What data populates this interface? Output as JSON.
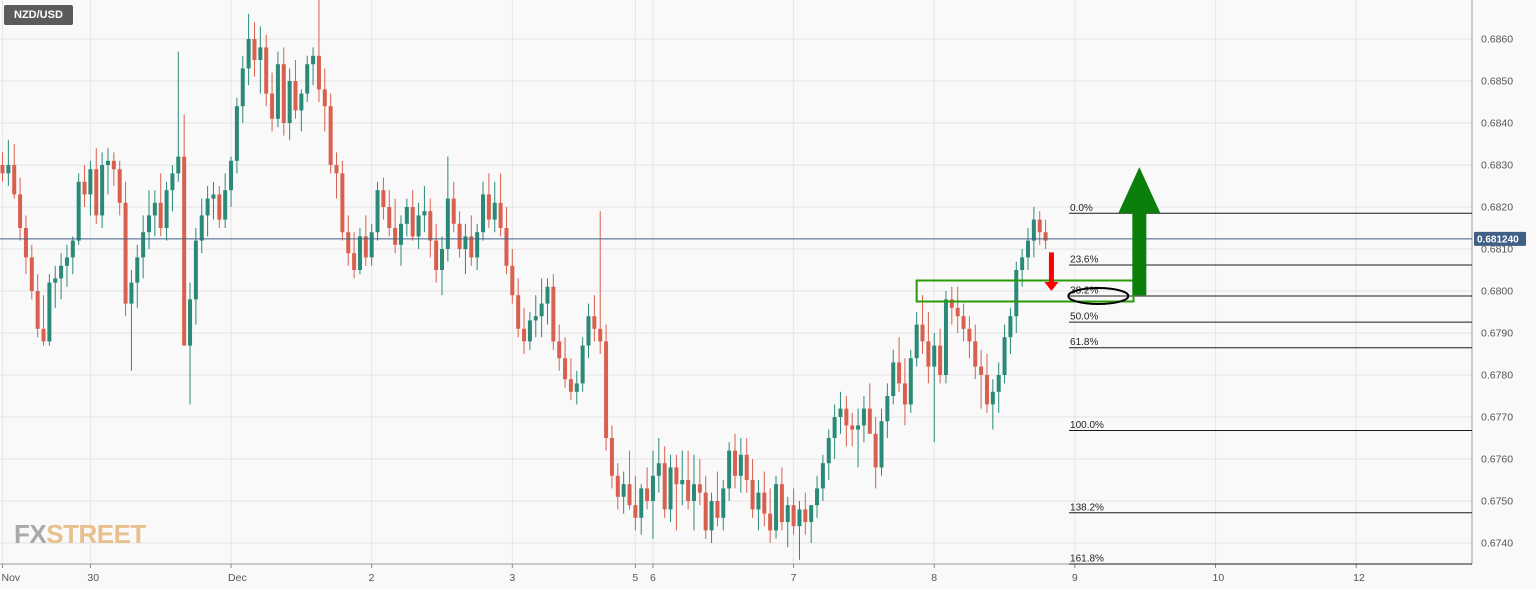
{
  "header": {
    "symbol": "NZD/USD"
  },
  "watermark": {
    "part1": "FX",
    "part2": "STREET"
  },
  "colors": {
    "up": "#2a8a77",
    "down": "#d9604e",
    "price_badge": "#3f5f86",
    "fib_line": "#1a1a1a",
    "zone": "#2a9a0a",
    "arrow_up": "#0b7f0b",
    "arrow_down": "#ff0000"
  },
  "chart_data": {
    "type": "candlestick",
    "title": "NZD/USD",
    "ylim": [
      0.6735,
      0.687
    ],
    "y_ticks": [
      "0.6740",
      "0.6750",
      "0.6760",
      "0.6770",
      "0.6780",
      "0.6790",
      "0.6800",
      "0.6810",
      "0.6820",
      "0.6830",
      "0.6840",
      "0.6850",
      "0.6860"
    ],
    "x_ticks": [
      {
        "label": "Nov",
        "bar": 0
      },
      {
        "label": "30",
        "bar": 15
      },
      {
        "label": "Dec",
        "bar": 39
      },
      {
        "label": "2",
        "bar": 63
      },
      {
        "label": "3",
        "bar": 87
      },
      {
        "label": "5",
        "bar": 108
      },
      {
        "label": "6",
        "bar": 111
      },
      {
        "label": "7",
        "bar": 135
      },
      {
        "label": "8",
        "bar": 159
      },
      {
        "label": "9",
        "bar": 183
      },
      {
        "label": "10",
        "bar": 207
      },
      {
        "label": "12",
        "bar": 231
      }
    ],
    "grid": true,
    "current_price": "0.681240",
    "current_value": 0.68124,
    "fibonacci": [
      {
        "label": "0.0%",
        "value": 0.68185
      },
      {
        "label": "23.6%",
        "value": 0.68062
      },
      {
        "label": "38.2%",
        "value": 0.67988
      },
      {
        "label": "50.0%",
        "value": 0.67926
      },
      {
        "label": "61.8%",
        "value": 0.67865
      },
      {
        "label": "100.0%",
        "value": 0.67668
      },
      {
        "label": "138.2%",
        "value": 0.67472
      },
      {
        "label": "161.8%",
        "value": 0.6735
      }
    ],
    "annotations": {
      "zone": {
        "from_bar": 156,
        "to_bar": 193,
        "low": 0.67975,
        "high": 0.68025
      },
      "ellipse_level": 0.67988,
      "arrow_up": {
        "bar": 194,
        "from": 0.6799,
        "to": 0.68295
      },
      "arrow_down": {
        "bar": 179,
        "from": 0.68092,
        "to": 0.68
      }
    },
    "candles": [
      [
        0.683,
        0.6833,
        0.6826,
        0.6828
      ],
      [
        0.6828,
        0.6836,
        0.6825,
        0.683
      ],
      [
        0.683,
        0.6835,
        0.6822,
        0.6823
      ],
      [
        0.6823,
        0.6827,
        0.6812,
        0.6815
      ],
      [
        0.6815,
        0.6818,
        0.6804,
        0.6808
      ],
      [
        0.6808,
        0.6811,
        0.6798,
        0.68
      ],
      [
        0.68,
        0.6804,
        0.6789,
        0.6791
      ],
      [
        0.6791,
        0.6799,
        0.6787,
        0.6788
      ],
      [
        0.6788,
        0.6804,
        0.6787,
        0.6802
      ],
      [
        0.6802,
        0.6806,
        0.6796,
        0.6803
      ],
      [
        0.6803,
        0.6809,
        0.6798,
        0.6806
      ],
      [
        0.6806,
        0.6811,
        0.6801,
        0.6808
      ],
      [
        0.6808,
        0.6813,
        0.6804,
        0.6812
      ],
      [
        0.6812,
        0.6828,
        0.6811,
        0.6826
      ],
      [
        0.6826,
        0.683,
        0.682,
        0.6823
      ],
      [
        0.6823,
        0.6831,
        0.6818,
        0.6829
      ],
      [
        0.6829,
        0.6834,
        0.6816,
        0.6818
      ],
      [
        0.6818,
        0.6833,
        0.6815,
        0.683
      ],
      [
        0.683,
        0.6834,
        0.6823,
        0.6831
      ],
      [
        0.6831,
        0.6833,
        0.6825,
        0.6829
      ],
      [
        0.6829,
        0.6831,
        0.6818,
        0.6821
      ],
      [
        0.6821,
        0.6826,
        0.6794,
        0.6797
      ],
      [
        0.6797,
        0.6805,
        0.6781,
        0.6802
      ],
      [
        0.6802,
        0.6811,
        0.6796,
        0.6808
      ],
      [
        0.6808,
        0.6818,
        0.6803,
        0.6814
      ],
      [
        0.6814,
        0.6824,
        0.681,
        0.6818
      ],
      [
        0.6818,
        0.6824,
        0.6813,
        0.6821
      ],
      [
        0.6821,
        0.6828,
        0.6813,
        0.6815
      ],
      [
        0.6815,
        0.6826,
        0.6812,
        0.6824
      ],
      [
        0.6824,
        0.683,
        0.6819,
        0.6828
      ],
      [
        0.6828,
        0.6857,
        0.6826,
        0.6832
      ],
      [
        0.6832,
        0.6842,
        0.6788,
        0.6787
      ],
      [
        0.6787,
        0.6802,
        0.6773,
        0.6798
      ],
      [
        0.6798,
        0.6815,
        0.6792,
        0.6812
      ],
      [
        0.6812,
        0.6822,
        0.6809,
        0.6818
      ],
      [
        0.6818,
        0.6825,
        0.6813,
        0.6822
      ],
      [
        0.6822,
        0.6826,
        0.6817,
        0.6823
      ],
      [
        0.6823,
        0.6825,
        0.6815,
        0.6817
      ],
      [
        0.6817,
        0.6828,
        0.6815,
        0.6824
      ],
      [
        0.6824,
        0.6832,
        0.682,
        0.6831
      ],
      [
        0.6831,
        0.6846,
        0.6828,
        0.6844
      ],
      [
        0.6844,
        0.6856,
        0.684,
        0.6853
      ],
      [
        0.6853,
        0.6866,
        0.6849,
        0.686
      ],
      [
        0.686,
        0.6864,
        0.6851,
        0.6855
      ],
      [
        0.6855,
        0.6863,
        0.6847,
        0.6858
      ],
      [
        0.6858,
        0.6861,
        0.6844,
        0.6847
      ],
      [
        0.6847,
        0.6852,
        0.6838,
        0.6841
      ],
      [
        0.6841,
        0.6857,
        0.6839,
        0.6854
      ],
      [
        0.6854,
        0.6858,
        0.6837,
        0.684
      ],
      [
        0.684,
        0.6853,
        0.6836,
        0.685
      ],
      [
        0.685,
        0.6855,
        0.6841,
        0.6843
      ],
      [
        0.6843,
        0.6848,
        0.6838,
        0.6847
      ],
      [
        0.6847,
        0.6856,
        0.6845,
        0.6854
      ],
      [
        0.6854,
        0.6858,
        0.6849,
        0.6856
      ],
      [
        0.6856,
        0.6871,
        0.6845,
        0.6848
      ],
      [
        0.6848,
        0.6853,
        0.6838,
        0.6844
      ],
      [
        0.6844,
        0.6847,
        0.6828,
        0.683
      ],
      [
        0.683,
        0.6833,
        0.6822,
        0.6828
      ],
      [
        0.6828,
        0.6831,
        0.6812,
        0.6814
      ],
      [
        0.6814,
        0.6818,
        0.6806,
        0.6809
      ],
      [
        0.6809,
        0.6814,
        0.6803,
        0.6805
      ],
      [
        0.6805,
        0.6815,
        0.6804,
        0.6813
      ],
      [
        0.6813,
        0.6818,
        0.6806,
        0.6808
      ],
      [
        0.6808,
        0.6816,
        0.6806,
        0.6814
      ],
      [
        0.6814,
        0.6826,
        0.6812,
        0.6824
      ],
      [
        0.6824,
        0.6827,
        0.6817,
        0.682
      ],
      [
        0.682,
        0.6824,
        0.6813,
        0.6815
      ],
      [
        0.6815,
        0.6822,
        0.6809,
        0.6811
      ],
      [
        0.6811,
        0.6818,
        0.6806,
        0.6816
      ],
      [
        0.6816,
        0.6822,
        0.6813,
        0.682
      ],
      [
        0.682,
        0.6824,
        0.6812,
        0.6813
      ],
      [
        0.6813,
        0.6821,
        0.681,
        0.6818
      ],
      [
        0.6818,
        0.6825,
        0.6814,
        0.6819
      ],
      [
        0.6819,
        0.6822,
        0.6808,
        0.6812
      ],
      [
        0.6812,
        0.6816,
        0.6802,
        0.6805
      ],
      [
        0.6805,
        0.6813,
        0.6799,
        0.681
      ],
      [
        0.681,
        0.6832,
        0.6807,
        0.6822
      ],
      [
        0.6822,
        0.6826,
        0.6814,
        0.6816
      ],
      [
        0.6816,
        0.6819,
        0.6808,
        0.681
      ],
      [
        0.681,
        0.6816,
        0.6804,
        0.6813
      ],
      [
        0.6813,
        0.6818,
        0.6806,
        0.6808
      ],
      [
        0.6808,
        0.6816,
        0.6805,
        0.6814
      ],
      [
        0.6814,
        0.6826,
        0.6812,
        0.6823
      ],
      [
        0.6823,
        0.6828,
        0.6815,
        0.6817
      ],
      [
        0.6817,
        0.6826,
        0.6814,
        0.6821
      ],
      [
        0.6821,
        0.6828,
        0.6813,
        0.6815
      ],
      [
        0.6815,
        0.682,
        0.6804,
        0.6806
      ],
      [
        0.6806,
        0.681,
        0.6797,
        0.6799
      ],
      [
        0.6799,
        0.6803,
        0.6789,
        0.6791
      ],
      [
        0.6791,
        0.6796,
        0.6785,
        0.6788
      ],
      [
        0.6788,
        0.6795,
        0.6786,
        0.6793
      ],
      [
        0.6793,
        0.6799,
        0.6789,
        0.6794
      ],
      [
        0.6794,
        0.6803,
        0.6789,
        0.6797
      ],
      [
        0.6797,
        0.6803,
        0.6792,
        0.6801
      ],
      [
        0.6801,
        0.6804,
        0.6786,
        0.6788
      ],
      [
        0.6788,
        0.6792,
        0.6781,
        0.6784
      ],
      [
        0.6784,
        0.6789,
        0.6777,
        0.6779
      ],
      [
        0.6779,
        0.6784,
        0.6774,
        0.6776
      ],
      [
        0.6776,
        0.6781,
        0.6773,
        0.6778
      ],
      [
        0.6778,
        0.6789,
        0.6776,
        0.6787
      ],
      [
        0.6787,
        0.6797,
        0.6784,
        0.6794
      ],
      [
        0.6794,
        0.6799,
        0.6788,
        0.6791
      ],
      [
        0.6791,
        0.6819,
        0.6785,
        0.6788
      ],
      [
        0.6788,
        0.6792,
        0.6762,
        0.6765
      ],
      [
        0.6765,
        0.6768,
        0.6753,
        0.6756
      ],
      [
        0.6756,
        0.6759,
        0.6748,
        0.6751
      ],
      [
        0.6751,
        0.6757,
        0.6747,
        0.6754
      ],
      [
        0.6754,
        0.6762,
        0.6748,
        0.6749
      ],
      [
        0.6749,
        0.6756,
        0.6743,
        0.6746
      ],
      [
        0.6746,
        0.6754,
        0.6742,
        0.6753
      ],
      [
        0.6753,
        0.6758,
        0.6748,
        0.675
      ],
      [
        0.675,
        0.6762,
        0.6741,
        0.6756
      ],
      [
        0.6756,
        0.6765,
        0.6752,
        0.6759
      ],
      [
        0.6759,
        0.6763,
        0.6746,
        0.6748
      ],
      [
        0.6748,
        0.6761,
        0.6745,
        0.6758
      ],
      [
        0.6758,
        0.6761,
        0.6743,
        0.6754
      ],
      [
        0.6754,
        0.6762,
        0.6749,
        0.6755
      ],
      [
        0.6755,
        0.6762,
        0.6748,
        0.675
      ],
      [
        0.675,
        0.6761,
        0.6743,
        0.6754
      ],
      [
        0.6754,
        0.676,
        0.6749,
        0.6752
      ],
      [
        0.6752,
        0.6756,
        0.6741,
        0.6743
      ],
      [
        0.6743,
        0.6752,
        0.674,
        0.675
      ],
      [
        0.675,
        0.6757,
        0.6744,
        0.6746
      ],
      [
        0.6746,
        0.6755,
        0.6743,
        0.6753
      ],
      [
        0.6753,
        0.6764,
        0.675,
        0.6762
      ],
      [
        0.6762,
        0.6766,
        0.6753,
        0.6756
      ],
      [
        0.6756,
        0.6765,
        0.6752,
        0.6761
      ],
      [
        0.6761,
        0.6765,
        0.6752,
        0.6755
      ],
      [
        0.6755,
        0.676,
        0.6746,
        0.6748
      ],
      [
        0.6748,
        0.6755,
        0.6743,
        0.6752
      ],
      [
        0.6752,
        0.6757,
        0.6744,
        0.6747
      ],
      [
        0.6747,
        0.6753,
        0.674,
        0.6743
      ],
      [
        0.6743,
        0.6756,
        0.6741,
        0.6754
      ],
      [
        0.6754,
        0.6758,
        0.6743,
        0.6745
      ],
      [
        0.6745,
        0.6751,
        0.6739,
        0.6749
      ],
      [
        0.6749,
        0.6753,
        0.6742,
        0.6744
      ],
      [
        0.6744,
        0.675,
        0.6736,
        0.6748
      ],
      [
        0.6748,
        0.6752,
        0.6742,
        0.6745
      ],
      [
        0.6745,
        0.6749,
        0.674,
        0.6749
      ],
      [
        0.6749,
        0.6756,
        0.6746,
        0.6753
      ],
      [
        0.6753,
        0.6761,
        0.675,
        0.6759
      ],
      [
        0.6759,
        0.6767,
        0.6755,
        0.6765
      ],
      [
        0.6765,
        0.6773,
        0.676,
        0.677
      ],
      [
        0.677,
        0.6776,
        0.6766,
        0.6772
      ],
      [
        0.6772,
        0.6775,
        0.6763,
        0.6768
      ],
      [
        0.6768,
        0.6771,
        0.6763,
        0.6767
      ],
      [
        0.6767,
        0.6772,
        0.6758,
        0.6768
      ],
      [
        0.6768,
        0.6775,
        0.6764,
        0.6772
      ],
      [
        0.6772,
        0.6778,
        0.6767,
        0.6766
      ],
      [
        0.6766,
        0.677,
        0.6753,
        0.6758
      ],
      [
        0.6758,
        0.6772,
        0.6756,
        0.6769
      ],
      [
        0.6769,
        0.6778,
        0.6765,
        0.6775
      ],
      [
        0.6775,
        0.6786,
        0.6773,
        0.6783
      ],
      [
        0.6783,
        0.6789,
        0.6776,
        0.6778
      ],
      [
        0.6778,
        0.6784,
        0.6768,
        0.6773
      ],
      [
        0.6773,
        0.6786,
        0.6771,
        0.6784
      ],
      [
        0.6784,
        0.6795,
        0.6782,
        0.6792
      ],
      [
        0.6792,
        0.6799,
        0.6785,
        0.6788
      ],
      [
        0.6788,
        0.6795,
        0.6778,
        0.6782
      ],
      [
        0.6782,
        0.679,
        0.6764,
        0.6787
      ],
      [
        0.6787,
        0.6791,
        0.6778,
        0.678
      ],
      [
        0.678,
        0.68,
        0.6778,
        0.6798
      ],
      [
        0.6798,
        0.6801,
        0.6792,
        0.6796
      ],
      [
        0.6796,
        0.6801,
        0.679,
        0.6794
      ],
      [
        0.6794,
        0.6797,
        0.6788,
        0.6791
      ],
      [
        0.6791,
        0.6794,
        0.6784,
        0.6788
      ],
      [
        0.6788,
        0.6792,
        0.6779,
        0.6782
      ],
      [
        0.6782,
        0.6786,
        0.6772,
        0.678
      ],
      [
        0.678,
        0.6785,
        0.6771,
        0.6773
      ],
      [
        0.6773,
        0.6779,
        0.6767,
        0.6776
      ],
      [
        0.6776,
        0.6783,
        0.6771,
        0.678
      ],
      [
        0.678,
        0.6792,
        0.6778,
        0.6789
      ],
      [
        0.6789,
        0.6796,
        0.6785,
        0.6794
      ],
      [
        0.6794,
        0.6807,
        0.679,
        0.6805
      ],
      [
        0.6805,
        0.681,
        0.6801,
        0.6808
      ],
      [
        0.6808,
        0.6815,
        0.6805,
        0.6812
      ],
      [
        0.6812,
        0.682,
        0.6808,
        0.6817
      ],
      [
        0.6817,
        0.6819,
        0.6811,
        0.6814
      ],
      [
        0.6814,
        0.6817,
        0.681,
        0.6812
      ]
    ]
  }
}
